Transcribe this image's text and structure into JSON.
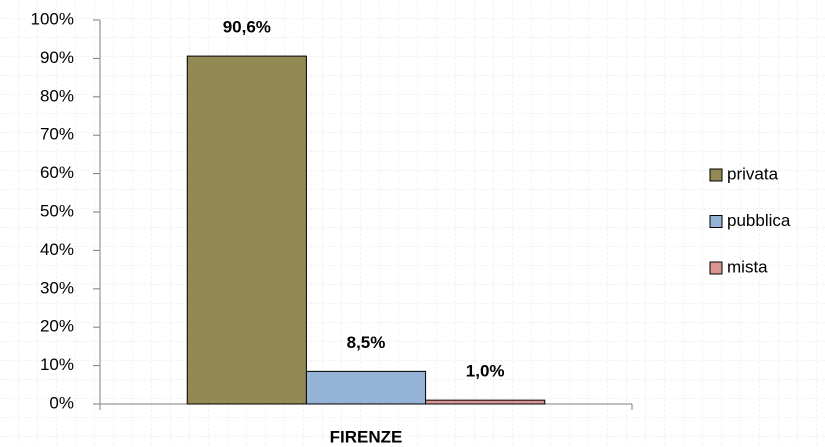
{
  "chart_data": {
    "type": "bar",
    "categories": [
      "FIRENZE"
    ],
    "series": [
      {
        "name": "privata",
        "color": "#938953",
        "values": [
          90.6
        ],
        "value_labels": [
          "90,6%"
        ]
      },
      {
        "name": "pubblica",
        "color": "#95b3d7",
        "values": [
          8.5
        ],
        "value_labels": [
          "8,5%"
        ]
      },
      {
        "name": "mista",
        "color": "#d99694",
        "values": [
          1.0
        ],
        "value_labels": [
          "1,0%"
        ]
      }
    ],
    "ylim": [
      0,
      100
    ],
    "yticks": [
      {
        "value": 0,
        "label": "0%"
      },
      {
        "value": 10,
        "label": "10%"
      },
      {
        "value": 20,
        "label": "20%"
      },
      {
        "value": 30,
        "label": "30%"
      },
      {
        "value": 40,
        "label": "40%"
      },
      {
        "value": 50,
        "label": "50%"
      },
      {
        "value": 60,
        "label": "60%"
      },
      {
        "value": 70,
        "label": "70%"
      },
      {
        "value": 80,
        "label": "80%"
      },
      {
        "value": 90,
        "label": "90%"
      },
      {
        "value": 100,
        "label": "100%"
      }
    ],
    "legend": "right"
  }
}
